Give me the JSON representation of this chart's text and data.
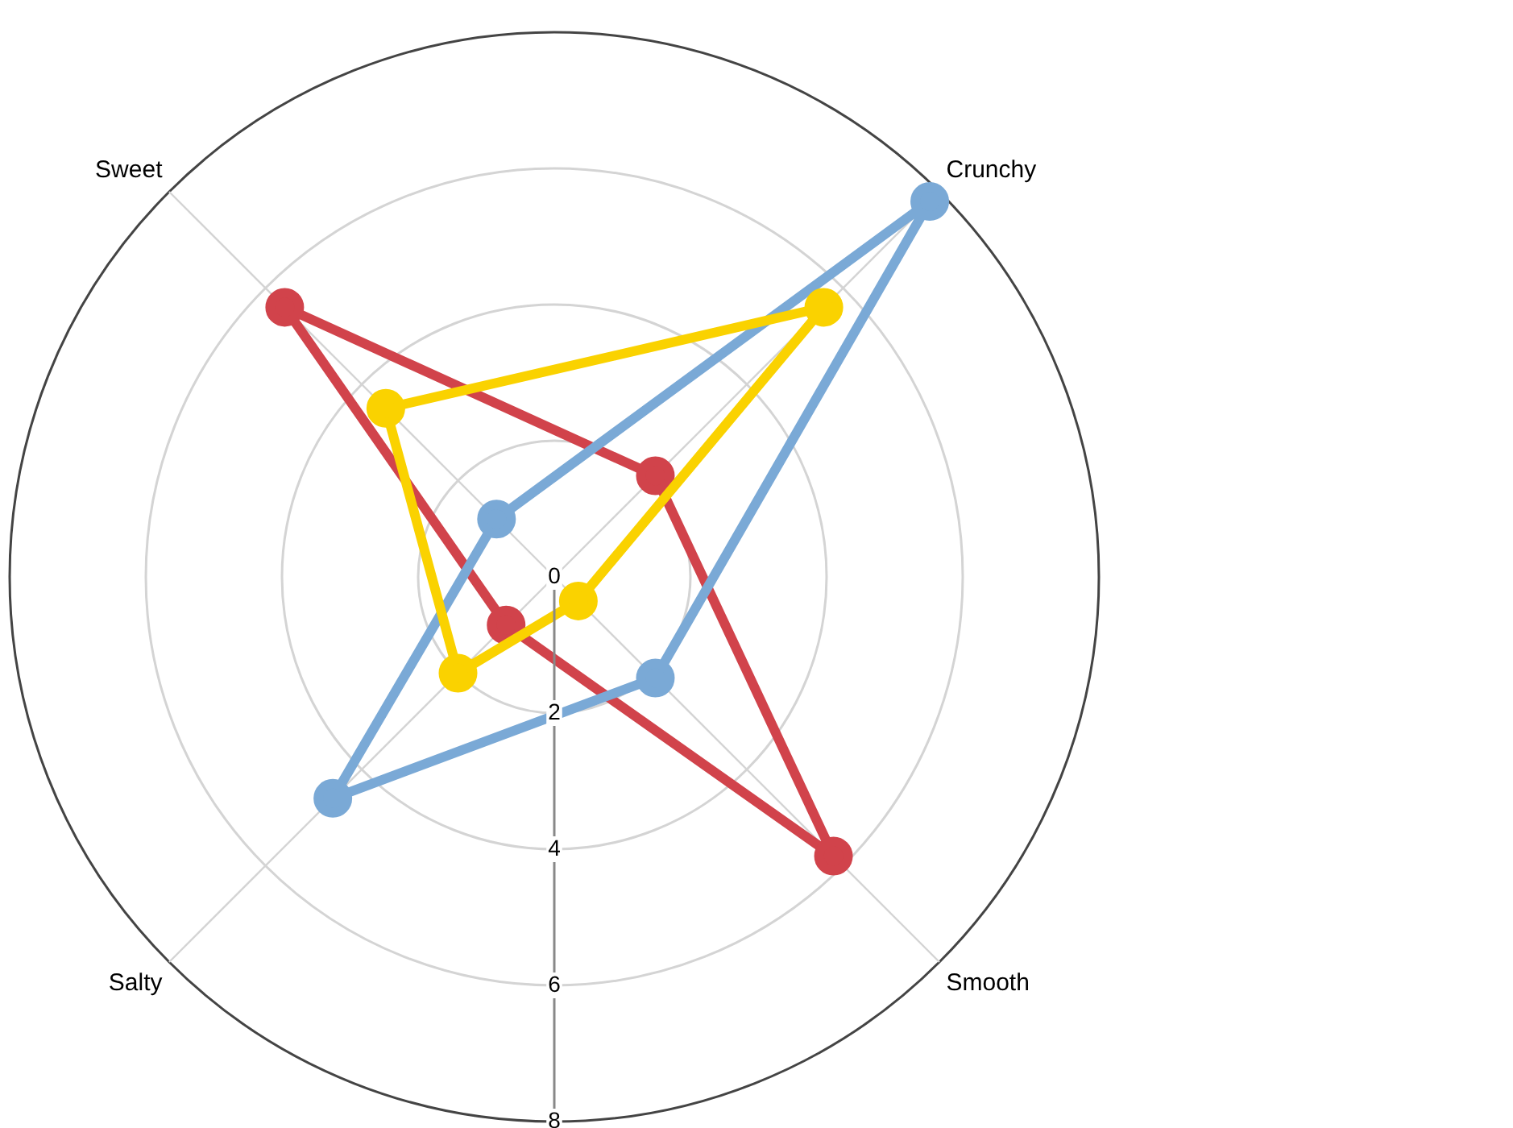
{
  "chart_data": {
    "type": "radar",
    "categories": [
      "Crunchy",
      "Smooth",
      "Salty",
      "Sweet"
    ],
    "series": [
      {
        "color": "#fad200",
        "values": [
          5.6,
          0.5,
          2.0,
          3.5
        ]
      },
      {
        "color": "#7aa9d6",
        "values": [
          7.8,
          2.1,
          4.6,
          1.2
        ]
      },
      {
        "color": "#d1434b",
        "values": [
          2.1,
          5.8,
          1.0,
          5.6
        ]
      }
    ],
    "ylim": [
      0,
      8
    ],
    "yticks": [
      0,
      2,
      4,
      6,
      8
    ],
    "grid": true,
    "marker": "circle"
  }
}
